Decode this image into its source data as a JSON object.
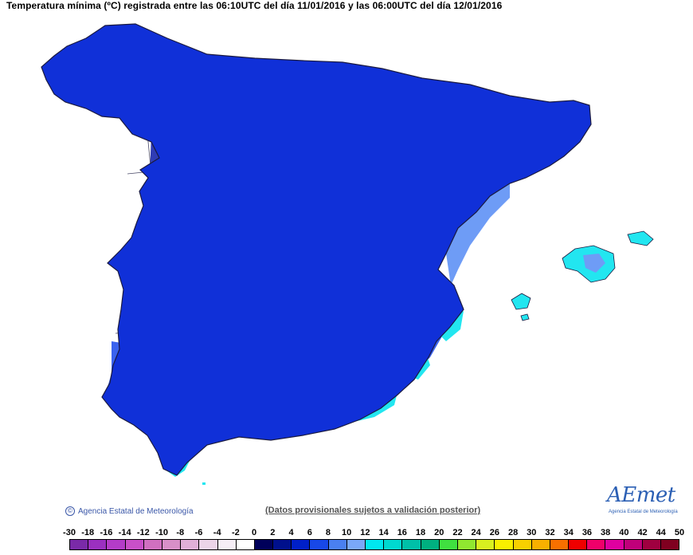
{
  "title": "Temperatura mínima (ºC) registrada entre las 06:10UTC del día 11/01/2016 y las 06:00UTC del día 12/01/2016",
  "copyright": "Agencia Estatal de Meteorología",
  "provisional_note": "(Datos provisionales sujetos a validación posterior)",
  "logo": {
    "word": "AEmet",
    "subtitle": "Agencia Estatal de Meteorología"
  },
  "legend": {
    "labels": [
      "-30",
      "-18",
      "-16",
      "-14",
      "-12",
      "-10",
      "-8",
      "-6",
      "-4",
      "-2",
      "0",
      "2",
      "4",
      "6",
      "8",
      "10",
      "12",
      "14",
      "16",
      "18",
      "20",
      "22",
      "24",
      "26",
      "28",
      "30",
      "32",
      "34",
      "36",
      "38",
      "40",
      "42",
      "44",
      "50"
    ],
    "colors": [
      "#7a2aa8",
      "#9b30c0",
      "#b43cc8",
      "#c950c8",
      "#d070c0",
      "#d890c8",
      "#e0b0d8",
      "#ecd4e8",
      "#f6eef6",
      "#ffffff",
      "#00005a",
      "#00108c",
      "#0020c8",
      "#1848e8",
      "#4a80f0",
      "#7aa8f8",
      "#00e8f0",
      "#00d8d0",
      "#00c0a8",
      "#00b080",
      "#40e040",
      "#90e830",
      "#d8f020",
      "#f8f000",
      "#f8d000",
      "#f8b000",
      "#f87000",
      "#f00000",
      "#f0006a",
      "#e000a0",
      "#c0007a",
      "#a00040",
      "#800020"
    ]
  },
  "map_colors": {
    "sea": "#ffffff",
    "base": "#1030d8",
    "deep": "#0a1aa8",
    "mid": "#3a62ee",
    "light": "#6e9cf6",
    "cyan": "#22e6f0",
    "snow": "#f3eef5",
    "pinkish": "#e2c8dc",
    "border": "#1a1a40"
  }
}
